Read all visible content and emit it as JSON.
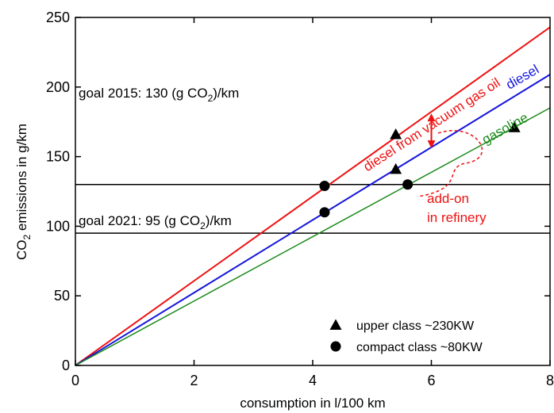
{
  "chart_data": {
    "type": "line",
    "xlabel": "consumption in l/100 km",
    "ylabel_parts": [
      "CO",
      "2",
      " emissions in g/km"
    ],
    "xlim": [
      0,
      8
    ],
    "ylim": [
      0,
      250
    ],
    "x_ticks": [
      "0",
      "2",
      "4",
      "6",
      "8"
    ],
    "y_ticks": [
      "0",
      "50",
      "100",
      "150",
      "200",
      "250"
    ],
    "grid": false,
    "series": [
      {
        "name": "diesel from vacuum gas oil",
        "color": "#ee1111",
        "x": [
          0,
          8
        ],
        "y": [
          0,
          243
        ]
      },
      {
        "name": "diesel",
        "color": "#1515dd",
        "x": [
          0,
          8
        ],
        "y": [
          0,
          209
        ]
      },
      {
        "name": "gasoline",
        "color": "#1a8a1a",
        "x": [
          0,
          8
        ],
        "y": [
          0,
          185
        ]
      }
    ],
    "hlines": [
      {
        "y": 130,
        "label_parts": [
          "goal 2015: 130 (g CO",
          "2",
          ")/km"
        ]
      },
      {
        "y": 95,
        "label_parts": [
          "goal 2021: 95 (g CO",
          "2",
          ")/km"
        ]
      }
    ],
    "points": {
      "upper_class": {
        "label": "upper class ~230KW",
        "marker": "triangle",
        "x": [
          5.4,
          5.4,
          7.4
        ],
        "y": [
          166,
          141,
          171
        ]
      },
      "compact_class": {
        "label": "compact class ~80KW",
        "marker": "circle",
        "x": [
          4.2,
          4.2,
          5.6
        ],
        "y": [
          129,
          110,
          130
        ]
      }
    },
    "annotations": {
      "addon": [
        "add-on",
        "in refinery"
      ],
      "color": "#ee1111"
    },
    "legend_position": "bottom-right"
  }
}
